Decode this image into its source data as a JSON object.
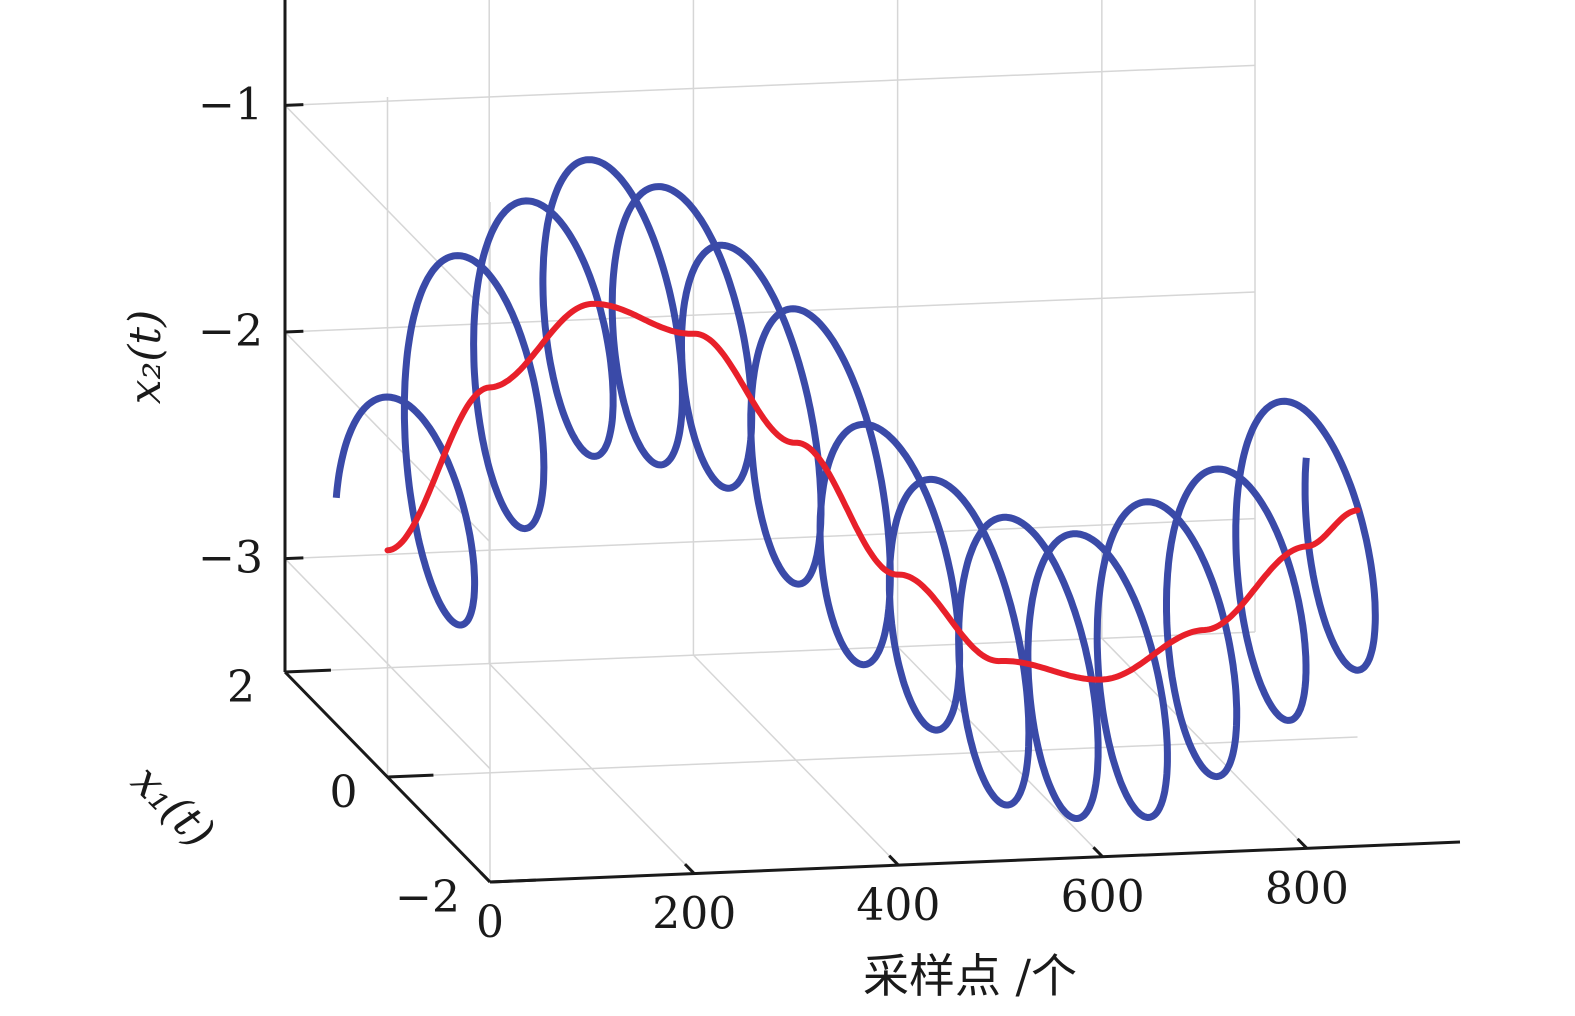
{
  "chart_data": {
    "type": "line",
    "dimensions": "3d",
    "xlabel": "采样点 /个",
    "ylabel": "x₁(t)",
    "zlabel": "x₂(t)",
    "xlim": [
      0,
      950
    ],
    "ylim": [
      -2,
      2
    ],
    "zlim": [
      -3.5,
      -0.5
    ],
    "x_ticks": [
      "0",
      "200",
      "400",
      "600",
      "800"
    ],
    "y_ticks": [
      "−2",
      "0",
      "2"
    ],
    "z_ticks": [
      "−3",
      "−2",
      "−1"
    ],
    "grid": true,
    "series": [
      {
        "color": "#e8202a",
        "style": "center sinusoid",
        "x": [
          0,
          100,
          200,
          300,
          400,
          500,
          600,
          700,
          800,
          900,
          950
        ],
        "y": [
          0,
          0,
          0,
          0,
          0,
          0,
          0,
          0,
          0,
          0,
          0
        ],
        "z": [
          -2.5,
          -1.8,
          -1.45,
          -1.6,
          -2.1,
          -2.7,
          -3.1,
          -3.2,
          -3.0,
          -2.65,
          -2.5
        ]
      },
      {
        "color": "#3a4aa8",
        "style": "helix around center curve",
        "turns": 14,
        "radius_y": 1,
        "radius_z": 0.6,
        "x_range": [
          0,
          950
        ]
      }
    ]
  }
}
